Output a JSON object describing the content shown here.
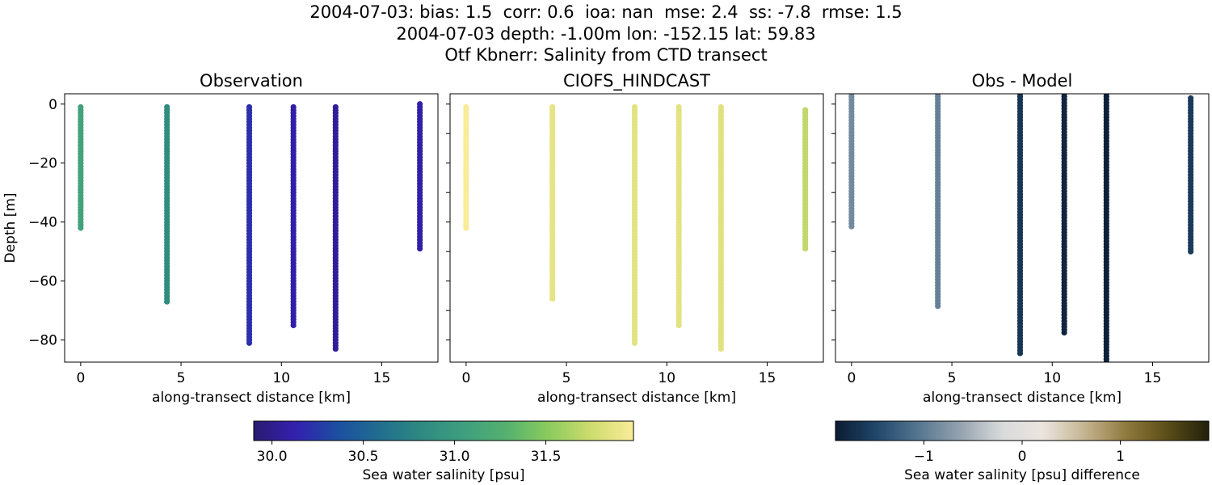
{
  "figure": {
    "title_lines": [
      "2004-07-03: bias: 1.5  corr: 0.6  ioa: nan  mse: 2.4  ss: -7.8  rmse: 1.5",
      "2004-07-03 depth: -1.00m lon: -152.15 lat: 59.83",
      "Otf Kbnerr: Salinity from CTD transect"
    ]
  },
  "chart_data": [
    {
      "type": "scatter",
      "title": "Observation",
      "xlabel": "along-transect distance [km]",
      "ylabel": "Depth [m]",
      "xlim": [
        -0.8,
        17.8
      ],
      "ylim": [
        -87.5,
        3.5
      ],
      "xticks": [
        0,
        5,
        10,
        15
      ],
      "yticks": [
        0,
        -20,
        -40,
        -60,
        -80
      ],
      "colormap": "haline",
      "profiles": [
        {
          "x": 0.0,
          "top": -1,
          "bottom": -42,
          "value": 31.1
        },
        {
          "x": 4.3,
          "top": -1,
          "bottom": -67,
          "value": 30.85
        },
        {
          "x": 8.4,
          "top": -1,
          "bottom": -81,
          "value": 30.2
        },
        {
          "x": 10.6,
          "top": -1,
          "bottom": -75,
          "value": 30.1
        },
        {
          "x": 12.7,
          "top": -1,
          "bottom": -83,
          "value": 30.05
        },
        {
          "x": 16.9,
          "top": 0,
          "bottom": -49,
          "value": 30.1
        }
      ]
    },
    {
      "type": "scatter",
      "title": "CIOFS_HINDCAST",
      "xlabel": "along-transect distance [km]",
      "xlim": [
        -0.8,
        17.8
      ],
      "ylim": [
        -87.5,
        3.5
      ],
      "xticks": [
        0,
        5,
        10,
        15
      ],
      "colormap": "haline",
      "profiles": [
        {
          "x": 0.0,
          "top": -1,
          "bottom": -42,
          "value": 31.97
        },
        {
          "x": 4.3,
          "top": -1,
          "bottom": -66,
          "value": 31.87
        },
        {
          "x": 8.4,
          "top": -1,
          "bottom": -81,
          "value": 31.85
        },
        {
          "x": 10.6,
          "top": -1,
          "bottom": -75,
          "value": 31.85
        },
        {
          "x": 12.7,
          "top": -1,
          "bottom": -83,
          "value": 31.84
        },
        {
          "x": 16.9,
          "top": -2,
          "bottom": -49,
          "value": 31.7
        }
      ]
    },
    {
      "type": "scatter",
      "title": "Obs - Model",
      "xlabel": "along-transect distance [km]",
      "xlim": [
        -0.8,
        17.8
      ],
      "ylim": [
        -87.5,
        3.5
      ],
      "xticks": [
        0,
        5,
        10,
        15
      ],
      "colormap": "diff",
      "profiles": [
        {
          "x": 0.0,
          "top": 3.5,
          "bottom": -42,
          "value": -0.85
        },
        {
          "x": 4.3,
          "top": 3.5,
          "bottom": -69,
          "value": -0.95
        },
        {
          "x": 8.4,
          "top": 3.5,
          "bottom": -85,
          "value": -1.65
        },
        {
          "x": 10.6,
          "top": 3.5,
          "bottom": -78,
          "value": -1.8
        },
        {
          "x": 12.7,
          "top": 3.5,
          "bottom": -87.5,
          "value": -1.85
        },
        {
          "x": 16.9,
          "top": 2,
          "bottom": -50,
          "value": -1.6
        }
      ]
    }
  ],
  "colorbars": [
    {
      "label": "Sea water salinity [psu]",
      "colormap": "haline",
      "range": [
        29.9,
        31.98
      ],
      "ticks": [
        "30.0",
        "30.5",
        "31.0",
        "31.5"
      ],
      "tick_values": [
        30.0,
        30.5,
        31.0,
        31.5
      ]
    },
    {
      "label": "Sea water salinity [psu] difference",
      "colormap": "diff",
      "range": [
        -1.9,
        1.9
      ],
      "ticks": [
        "−1",
        "0",
        "1"
      ],
      "tick_values": [
        -1,
        0,
        1
      ]
    }
  ],
  "colors": {
    "haline": [
      "#2a1b6e",
      "#3320b0",
      "#1b4fa0",
      "#216e8f",
      "#2f8a80",
      "#3f9f7f",
      "#55b16f",
      "#8ccb5e",
      "#cfdc6e",
      "#fbec9a"
    ],
    "diff": [
      "#0b1b33",
      "#20476a",
      "#557690",
      "#94a2ae",
      "#d8dadb",
      "#ebe6df",
      "#c5b591",
      "#8f7a3e",
      "#5b4d17",
      "#20200b"
    ]
  }
}
